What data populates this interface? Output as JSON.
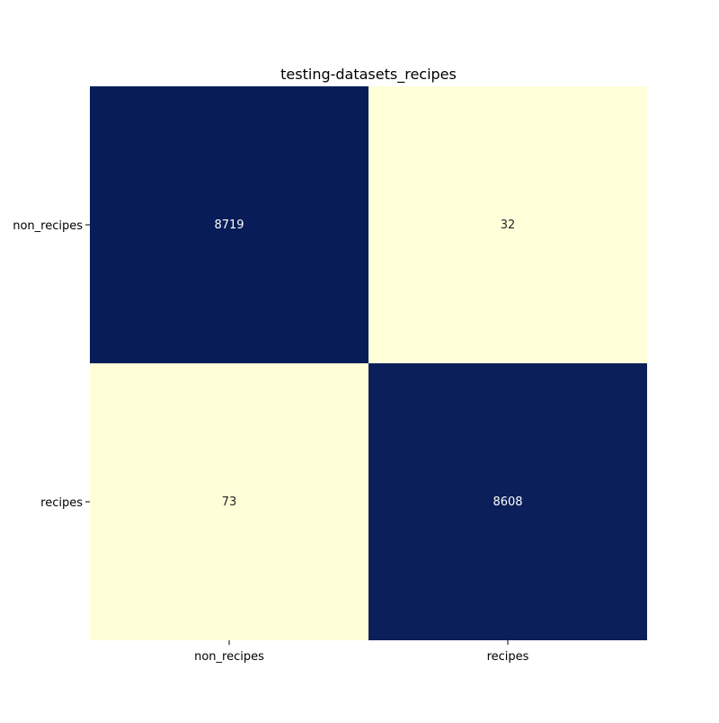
{
  "chart_data": {
    "type": "heatmap",
    "title": "testing-datasets_recipes",
    "xlabel": "",
    "ylabel": "",
    "x_categories": [
      "non_recipes",
      "recipes"
    ],
    "y_categories": [
      "non_recipes",
      "recipes"
    ],
    "values": [
      [
        8719,
        32
      ],
      [
        73,
        8608
      ]
    ],
    "colormap": "YlGnBu",
    "color_low": "#ffffd9",
    "color_high": "#081d58",
    "colorbar": false,
    "grid": false
  }
}
